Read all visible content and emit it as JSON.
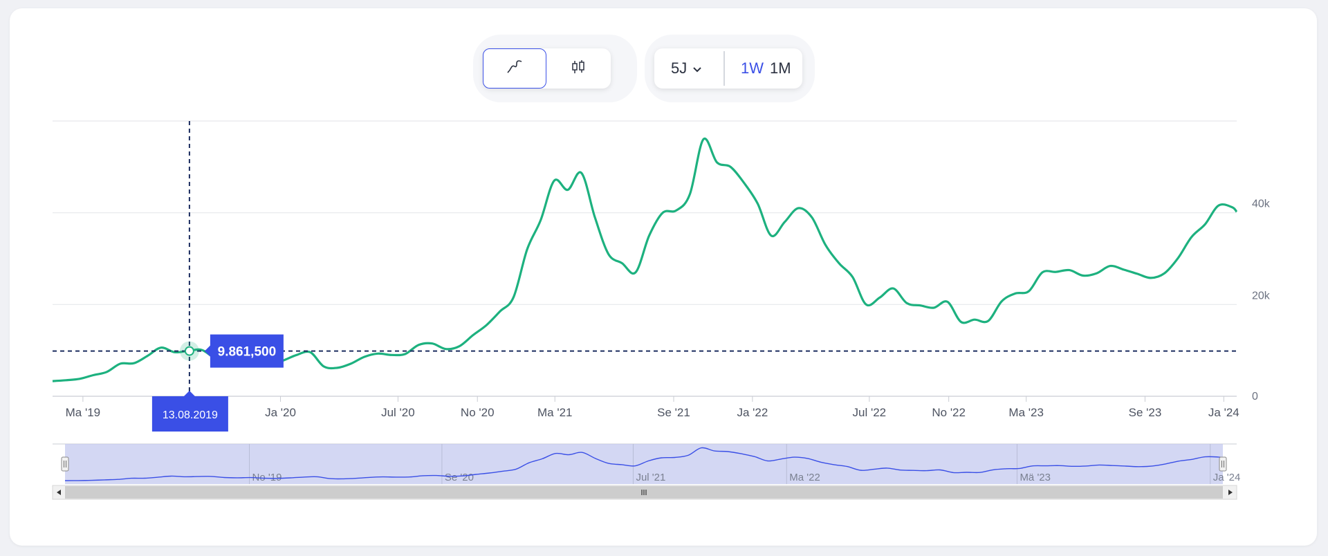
{
  "toolbar": {
    "chart_types": [
      {
        "icon": "line-chart-icon",
        "active": true
      },
      {
        "icon": "candlestick-icon",
        "active": false
      }
    ],
    "range": "5J",
    "intervals": [
      {
        "label": "1W",
        "active": true
      },
      {
        "label": "1M",
        "active": false
      }
    ]
  },
  "colors": {
    "line": "#1db17f",
    "accent": "#3a4fe6",
    "crosshair": "#1a2b5e",
    "navigator_fill": "#c4c9ef",
    "navigator_line": "#3a4fe6"
  },
  "tooltip": {
    "value": "9.861,500",
    "date": "13.08.2019"
  },
  "chart_data": {
    "type": "line",
    "y_ticks": [
      "0",
      "20k",
      "40k"
    ],
    "x_ticks": [
      "Ma '19",
      "Ja '20",
      "Jul '20",
      "No '20",
      "Ma '21",
      "Se '21",
      "Ja '22",
      "Jul '22",
      "No '22",
      "Ma '23",
      "Se '23",
      "Ja '24"
    ],
    "navigator_ticks": [
      "No '19",
      "Se '20",
      "Jul '21",
      "Ma '22",
      "Mä '23",
      "Ja '24"
    ],
    "ylim": [
      0,
      60000
    ],
    "x_range": [
      "2019-01-13",
      "2024-01-21"
    ],
    "crosshair": {
      "date": "2019-08-13",
      "value": 9861.5
    },
    "x": [
      "2019-01-13",
      "2019-02-03",
      "2019-02-24",
      "2019-03-17",
      "2019-04-07",
      "2019-04-28",
      "2019-05-19",
      "2019-06-09",
      "2019-06-30",
      "2019-07-21",
      "2019-08-11",
      "2019-09-01",
      "2019-09-22",
      "2019-10-13",
      "2019-11-03",
      "2019-11-24",
      "2019-12-15",
      "2020-01-05",
      "2020-01-26",
      "2020-02-16",
      "2020-03-08",
      "2020-03-29",
      "2020-04-19",
      "2020-05-10",
      "2020-05-31",
      "2020-06-21",
      "2020-07-12",
      "2020-08-02",
      "2020-08-23",
      "2020-09-13",
      "2020-10-04",
      "2020-10-25",
      "2020-11-15",
      "2020-12-06",
      "2020-12-27",
      "2021-01-17",
      "2021-02-07",
      "2021-02-28",
      "2021-03-21",
      "2021-04-11",
      "2021-05-02",
      "2021-05-23",
      "2021-06-13",
      "2021-07-04",
      "2021-07-25",
      "2021-08-15",
      "2021-09-05",
      "2021-09-26",
      "2021-10-17",
      "2021-11-07",
      "2021-11-28",
      "2021-12-19",
      "2022-01-09",
      "2022-01-30",
      "2022-02-20",
      "2022-03-13",
      "2022-04-03",
      "2022-04-24",
      "2022-05-15",
      "2022-06-05",
      "2022-06-26",
      "2022-07-17",
      "2022-08-07",
      "2022-08-28",
      "2022-09-18",
      "2022-10-09",
      "2022-10-30",
      "2022-11-20",
      "2022-12-11",
      "2023-01-01",
      "2023-01-22",
      "2023-02-12",
      "2023-03-05",
      "2023-03-26",
      "2023-04-16",
      "2023-05-07",
      "2023-05-28",
      "2023-06-18",
      "2023-07-09",
      "2023-07-30",
      "2023-08-20",
      "2023-09-10",
      "2023-10-01",
      "2023-10-22",
      "2023-11-12",
      "2023-12-03",
      "2023-12-24",
      "2024-01-14",
      "2024-01-21"
    ],
    "values": [
      3300,
      3500,
      3800,
      4600,
      5300,
      7100,
      7200,
      8800,
      10600,
      9600,
      9900,
      10100,
      8300,
      7900,
      8200,
      7200,
      7000,
      7800,
      9000,
      9600,
      6500,
      6200,
      7100,
      8600,
      9300,
      9000,
      9200,
      11200,
      11500,
      10300,
      10900,
      13300,
      15500,
      18500,
      21600,
      32000,
      38400,
      47000,
      45000,
      48700,
      39000,
      31000,
      29000,
      27000,
      35000,
      40000,
      40500,
      44000,
      56000,
      51000,
      50000,
      46500,
      42000,
      35000,
      38000,
      41000,
      39000,
      33000,
      29000,
      26000,
      20000,
      21500,
      23500,
      20300,
      19800,
      19300,
      20600,
      16200,
      16700,
      16400,
      20700,
      22400,
      22900,
      27000,
      27100,
      27500,
      26300,
      26800,
      28400,
      27600,
      26700,
      25800,
      26800,
      30100,
      34700,
      37500,
      41600,
      41200,
      40200
    ]
  }
}
